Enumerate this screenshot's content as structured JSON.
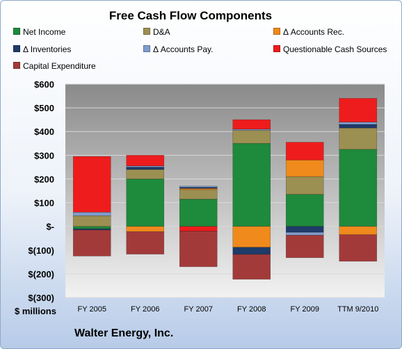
{
  "company": "Walter Energy, Inc.",
  "units_label": "$ millions",
  "chart_data": {
    "type": "bar",
    "stacked": true,
    "title": "Free Cash Flow Components",
    "categories": [
      "FY 2005",
      "FY 2006",
      "FY 2007",
      "FY 2008",
      "FY 2009",
      "TTM 9/2010"
    ],
    "yticks": [
      "$600",
      "$500",
      "$400",
      "$300",
      "$200",
      "$100",
      "$-",
      "$(100)",
      "$(200)",
      "$(300)"
    ],
    "ylim": [
      -300,
      600
    ],
    "grid": true,
    "legend_position": "top",
    "series": [
      {
        "name": "Net Income",
        "color": "#1e8a3c",
        "values": [
          -10,
          200,
          115,
          350,
          135,
          325
        ]
      },
      {
        "name": "D&A",
        "color": "#9c8f52",
        "values": [
          45,
          40,
          40,
          55,
          75,
          90
        ]
      },
      {
        "name": "Δ Accounts Rec.",
        "color": "#f08a1c",
        "values": [
          0,
          -22,
          5,
          -88,
          70,
          -35
        ]
      },
      {
        "name": "Δ Inventories",
        "color": "#1f3b69",
        "values": [
          -5,
          10,
          5,
          -30,
          -25,
          15
        ]
      },
      {
        "name": "Δ Accounts Pay.",
        "color": "#7f9ccc",
        "values": [
          15,
          5,
          5,
          5,
          -12,
          10
        ]
      },
      {
        "name": "Questionable Cash Sources",
        "color": "#ee1c1c",
        "values": [
          235,
          45,
          -20,
          40,
          75,
          100
        ]
      },
      {
        "name": "Capital Expenditure",
        "color": "#a33a3a",
        "values": [
          -110,
          -95,
          -150,
          -105,
          -95,
          -112
        ]
      }
    ]
  }
}
